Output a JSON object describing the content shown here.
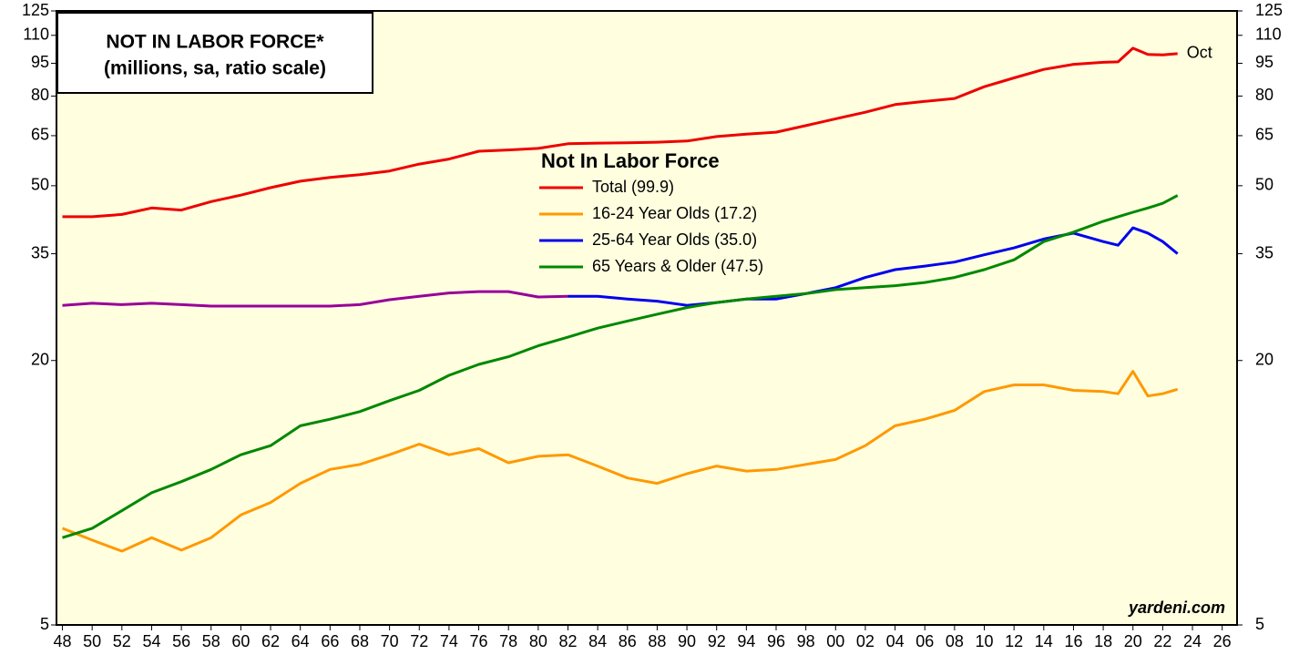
{
  "chart_data": {
    "type": "line",
    "title": "NOT IN LABOR FORCE*",
    "subtitle": "(millions, sa, ratio scale)",
    "legend_title": "Not In Labor Force",
    "annotation": "Oct",
    "source": "yardeni.com",
    "log_scale": true,
    "background": "#ffffe0",
    "x": [
      1948,
      1950,
      1952,
      1954,
      1956,
      1958,
      1960,
      1962,
      1964,
      1966,
      1968,
      1970,
      1972,
      1974,
      1976,
      1978,
      1980,
      1982,
      1984,
      1986,
      1988,
      1990,
      1992,
      1994,
      1996,
      1998,
      2000,
      2002,
      2004,
      2006,
      2008,
      2010,
      2012,
      2014,
      2016,
      2018,
      2019,
      2020,
      2021,
      2022,
      2023
    ],
    "series": [
      {
        "name": "Total (99.9)",
        "color": "#ee0000",
        "values": [
          42.5,
          42.5,
          43,
          44.5,
          44,
          46,
          47.6,
          49.5,
          51.2,
          52.2,
          53,
          54,
          56,
          57.5,
          59.9,
          60.3,
          60.8,
          62.3,
          62.5,
          62.6,
          62.8,
          63.2,
          64.7,
          65.5,
          66.2,
          68.5,
          71,
          73.5,
          76.5,
          77.8,
          79,
          84,
          88,
          92,
          94.5,
          95.5,
          95.7,
          102.8,
          99.5,
          99.3,
          99.9
        ]
      },
      {
        "name": "16-24 Year Olds (17.2)",
        "color": "#ff9900",
        "values": [
          8.3,
          7.8,
          7.36,
          7.9,
          7.4,
          7.9,
          8.9,
          9.5,
          10.5,
          11.3,
          11.6,
          12.2,
          12.9,
          12.2,
          12.6,
          11.7,
          12.1,
          12.2,
          11.5,
          10.8,
          10.5,
          11.05,
          11.5,
          11.2,
          11.3,
          11.6,
          11.9,
          12.8,
          14.2,
          14.7,
          15.4,
          17.0,
          17.6,
          17.6,
          17.1,
          17.0,
          16.8,
          18.9,
          16.6,
          16.8,
          17.2
        ]
      },
      {
        "name": "25-64 Year Olds (35.0)",
        "color": "#0000ee",
        "values": [
          null,
          null,
          null,
          null,
          null,
          null,
          null,
          null,
          null,
          null,
          null,
          null,
          null,
          null,
          null,
          null,
          null,
          28.0,
          28.0,
          27.6,
          27.3,
          26.7,
          27.1,
          27.6,
          27.6,
          28.4,
          29.3,
          30.9,
          32.2,
          32.8,
          33.5,
          34.8,
          36.1,
          37.8,
          39.0,
          37.3,
          36.6,
          40.1,
          39.0,
          37.3,
          35.0
        ]
      },
      {
        "name": "65 Years & Older (47.5)",
        "color": "#008800",
        "values": [
          7.9,
          8.3,
          9.1,
          10.0,
          10.6,
          11.3,
          12.2,
          12.8,
          14.2,
          14.7,
          15.3,
          16.2,
          17.1,
          18.5,
          19.6,
          20.4,
          21.6,
          22.6,
          23.7,
          24.6,
          25.5,
          26.4,
          27.1,
          27.6,
          28.0,
          28.4,
          29.0,
          29.3,
          29.6,
          30.1,
          30.9,
          32.2,
          33.9,
          37.3,
          39.2,
          41.5,
          42.5,
          43.5,
          44.5,
          45.6,
          47.5
        ]
      },
      {
        "color": "#990099",
        "values": [
          26.7,
          27.0,
          26.8,
          27.0,
          26.8,
          26.6,
          26.6,
          26.6,
          26.6,
          26.6,
          26.8,
          27.5,
          28.0,
          28.5,
          28.7,
          28.7,
          27.9,
          28.0,
          null,
          null,
          null,
          null,
          null,
          null,
          null,
          null,
          null,
          null,
          null,
          null,
          null,
          null,
          null,
          null,
          null,
          null,
          null,
          null,
          null,
          null,
          null
        ]
      }
    ],
    "xlim": [
      1947.6,
      2027
    ],
    "ylim": [
      5,
      125
    ],
    "yticks": [
      5,
      20,
      35,
      50,
      65,
      80,
      95,
      110,
      125
    ],
    "xticks": [
      {
        "value": 1948,
        "label": "48"
      },
      {
        "value": 1950,
        "label": "50"
      },
      {
        "value": 1952,
        "label": "52"
      },
      {
        "value": 1954,
        "label": "54"
      },
      {
        "value": 1956,
        "label": "56"
      },
      {
        "value": 1958,
        "label": "58"
      },
      {
        "value": 1960,
        "label": "60"
      },
      {
        "value": 1962,
        "label": "62"
      },
      {
        "value": 1964,
        "label": "64"
      },
      {
        "value": 1966,
        "label": "66"
      },
      {
        "value": 1968,
        "label": "68"
      },
      {
        "value": 1970,
        "label": "70"
      },
      {
        "value": 1972,
        "label": "72"
      },
      {
        "value": 1974,
        "label": "74"
      },
      {
        "value": 1976,
        "label": "76"
      },
      {
        "value": 1978,
        "label": "78"
      },
      {
        "value": 1980,
        "label": "80"
      },
      {
        "value": 1982,
        "label": "82"
      },
      {
        "value": 1984,
        "label": "84"
      },
      {
        "value": 1986,
        "label": "86"
      },
      {
        "value": 1988,
        "label": "88"
      },
      {
        "value": 1990,
        "label": "90"
      },
      {
        "value": 1992,
        "label": "92"
      },
      {
        "value": 1994,
        "label": "94"
      },
      {
        "value": 1996,
        "label": "96"
      },
      {
        "value": 1998,
        "label": "98"
      },
      {
        "value": 2000,
        "label": "00"
      },
      {
        "value": 2002,
        "label": "02"
      },
      {
        "value": 2004,
        "label": "04"
      },
      {
        "value": 2006,
        "label": "06"
      },
      {
        "value": 2008,
        "label": "08"
      },
      {
        "value": 2010,
        "label": "10"
      },
      {
        "value": 2012,
        "label": "12"
      },
      {
        "value": 2014,
        "label": "14"
      },
      {
        "value": 2016,
        "label": "16"
      },
      {
        "value": 2018,
        "label": "18"
      },
      {
        "value": 2020,
        "label": "20"
      },
      {
        "value": 2022,
        "label": "22"
      },
      {
        "value": 2024,
        "label": "24"
      },
      {
        "value": 2026,
        "label": "26"
      }
    ],
    "grid": false
  }
}
